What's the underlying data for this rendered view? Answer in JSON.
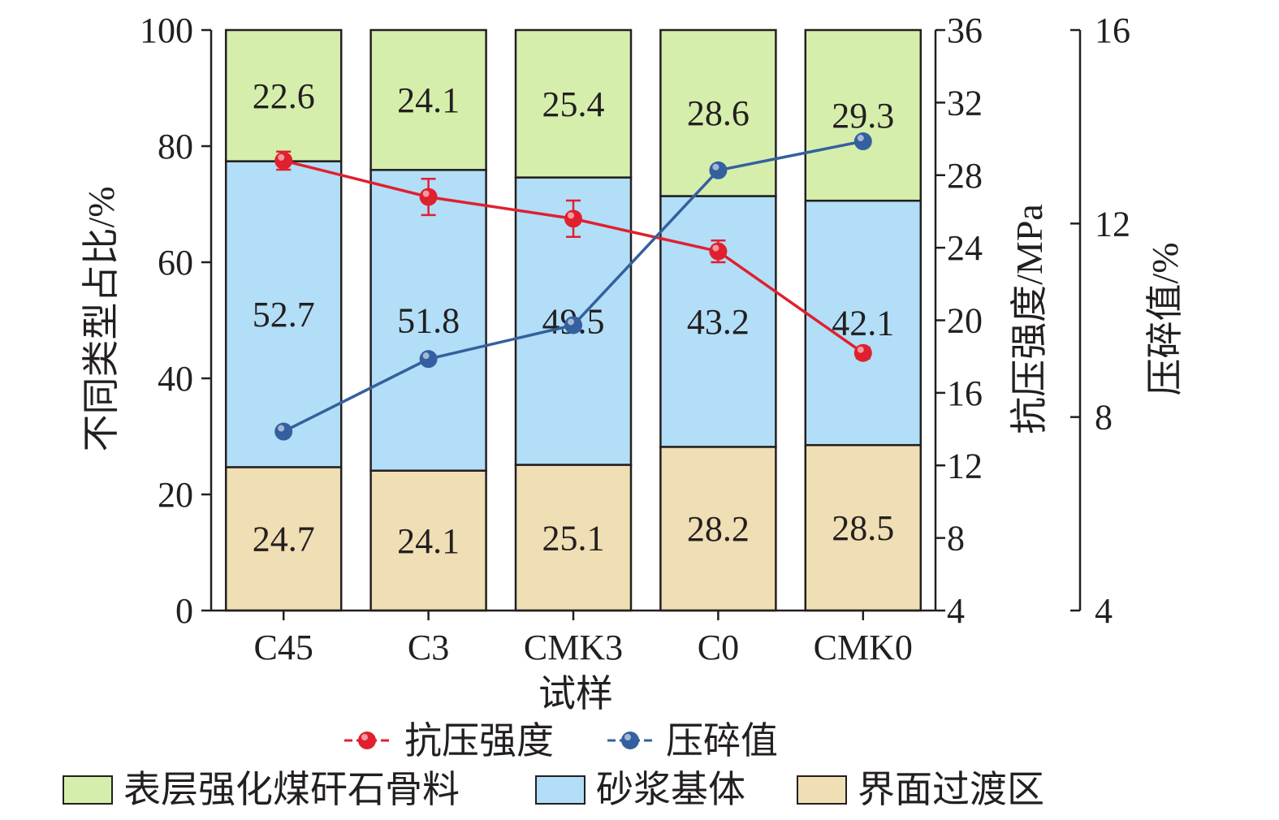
{
  "chart_data": {
    "type": "bar",
    "stacked": true,
    "categories": [
      "C45",
      "C3",
      "CMK3",
      "C0",
      "CMK0"
    ],
    "xlabel": "试样",
    "ylabel_left": "不同类型占比/%",
    "ylabel_right1": "抗压强度/MPa",
    "ylabel_right2": "压碎值/%",
    "ylim_left": [
      0,
      100
    ],
    "ylim_right1": [
      4,
      36
    ],
    "ylim_right2": [
      4,
      16
    ],
    "left_ticks": [
      "0",
      "20",
      "40",
      "60",
      "80",
      "100"
    ],
    "right1_ticks": [
      "4",
      "8",
      "12",
      "16",
      "20",
      "24",
      "28",
      "32",
      "36"
    ],
    "right2_ticks": [
      "4",
      "8",
      "12",
      "16"
    ],
    "series": [
      {
        "name": "界面过渡区",
        "values": [
          24.7,
          24.1,
          25.1,
          28.2,
          28.5
        ],
        "labels": [
          "24.7",
          "24.1",
          "25.1",
          "28.2",
          "28.5"
        ],
        "color": "#f0deb4"
      },
      {
        "name": "砂浆基体",
        "values": [
          52.7,
          51.8,
          49.5,
          43.2,
          42.1
        ],
        "labels": [
          "52.7",
          "51.8",
          "49.5",
          "43.2",
          "42.1"
        ],
        "color": "#b2def7"
      },
      {
        "name": "表层强化煤矸石骨料",
        "values": [
          22.6,
          24.1,
          25.4,
          28.6,
          29.3
        ],
        "labels": [
          "22.6",
          "24.1",
          "25.4",
          "28.6",
          "29.3"
        ],
        "color": "#d6eeac"
      }
    ],
    "lines": [
      {
        "name": "抗压强度",
        "axis": "right1",
        "color": "#e0202f",
        "values": [
          28.8,
          26.8,
          25.6,
          23.8,
          18.2
        ],
        "error": [
          0.5,
          1.0,
          1.0,
          0.6,
          0.3
        ]
      },
      {
        "name": "压碎值",
        "axis": "right2",
        "color": "#35609f",
        "values": [
          7.7,
          9.2,
          9.9,
          13.1,
          13.7
        ]
      }
    ],
    "legend": {
      "position": "bottom"
    }
  }
}
